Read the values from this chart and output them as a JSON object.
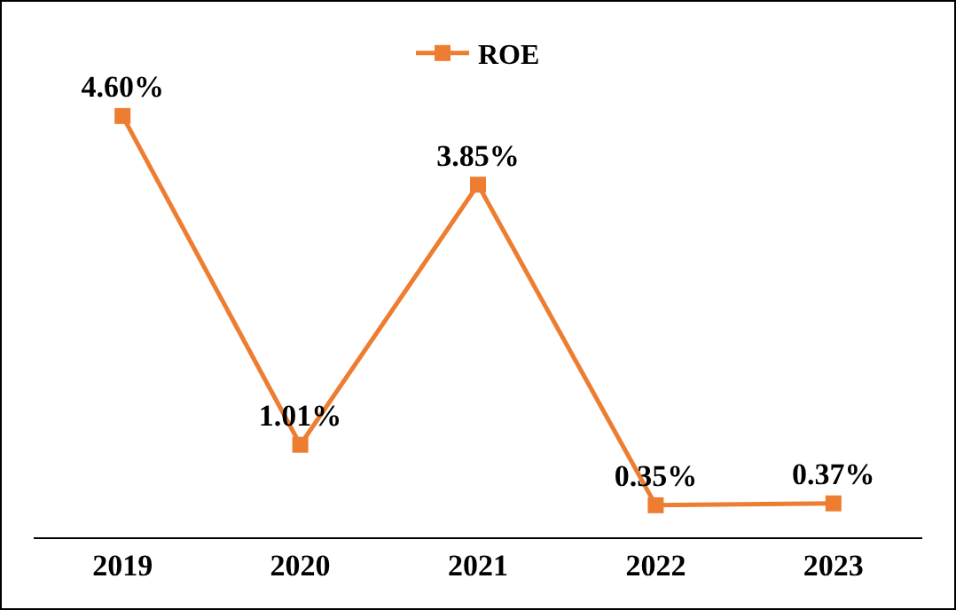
{
  "chart_data": {
    "type": "line",
    "categories": [
      "2019",
      "2020",
      "2021",
      "2022",
      "2023"
    ],
    "series": [
      {
        "name": "ROE",
        "color": "#ed7d31",
        "values": [
          4.6,
          1.01,
          3.85,
          0.35,
          0.37
        ],
        "value_labels": [
          "4.60%",
          "1.01%",
          "3.85%",
          "0.35%",
          "0.37%"
        ]
      }
    ],
    "tick_labels": "x",
    "grid": false,
    "legend": "top",
    "marker": "square",
    "line_style": "solid"
  }
}
